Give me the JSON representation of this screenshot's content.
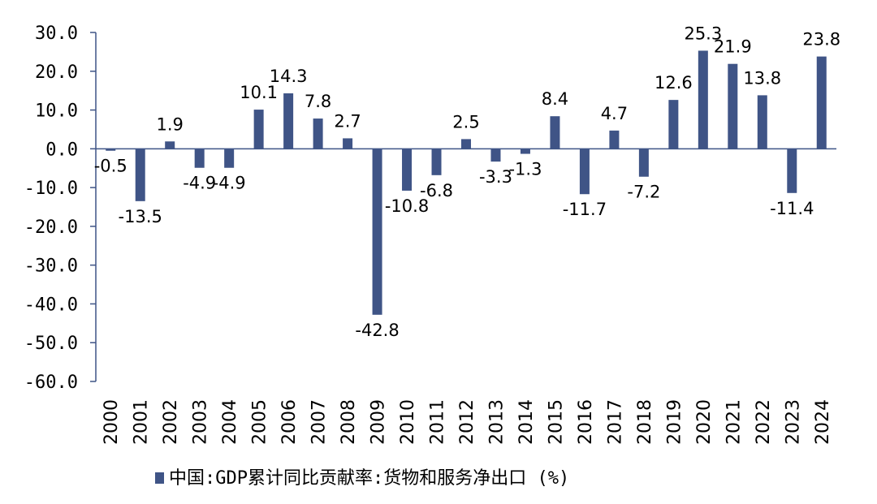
{
  "chart_data": {
    "type": "bar",
    "categories": [
      "2000",
      "2001",
      "2002",
      "2003",
      "2004",
      "2005",
      "2006",
      "2007",
      "2008",
      "2009",
      "2010",
      "2011",
      "2012",
      "2013",
      "2014",
      "2015",
      "2016",
      "2017",
      "2018",
      "2019",
      "2020",
      "2021",
      "2022",
      "2023",
      "2024"
    ],
    "series": [
      {
        "name": "中国:GDP累计同比贡献率:货物和服务净出口 (%)",
        "values": [
          -0.5,
          -13.5,
          1.9,
          -4.9,
          -4.9,
          10.1,
          14.3,
          7.8,
          2.7,
          -42.8,
          -10.8,
          -6.8,
          2.5,
          -3.3,
          -1.3,
          8.4,
          -11.7,
          4.7,
          -7.2,
          12.6,
          25.3,
          21.9,
          13.8,
          -11.4,
          23.8
        ]
      }
    ],
    "data_labels": [
      "-0.5",
      "-13.5",
      "1.9",
      "-4.9",
      "-4.9",
      "10.1",
      "14.3",
      "7.8",
      "2.7",
      "-42.8",
      "-10.8",
      "-6.8",
      "2.5",
      "-3.3",
      "-1.3",
      "8.4",
      "-11.7",
      "4.7",
      "-7.2",
      "12.6",
      "25.3",
      "21.9",
      "13.8",
      "-11.4",
      "23.8"
    ],
    "yticks": [
      "30.0",
      "20.0",
      "10.0",
      "0.0",
      "-10.0",
      "-20.0",
      "-30.0",
      "-40.0",
      "-50.0",
      "-60.0"
    ],
    "ylim": [
      -60,
      30
    ],
    "title": "",
    "xlabel": "",
    "ylabel": "",
    "legend_position": "bottom",
    "bar_color": "#3F5486",
    "grid": false
  }
}
